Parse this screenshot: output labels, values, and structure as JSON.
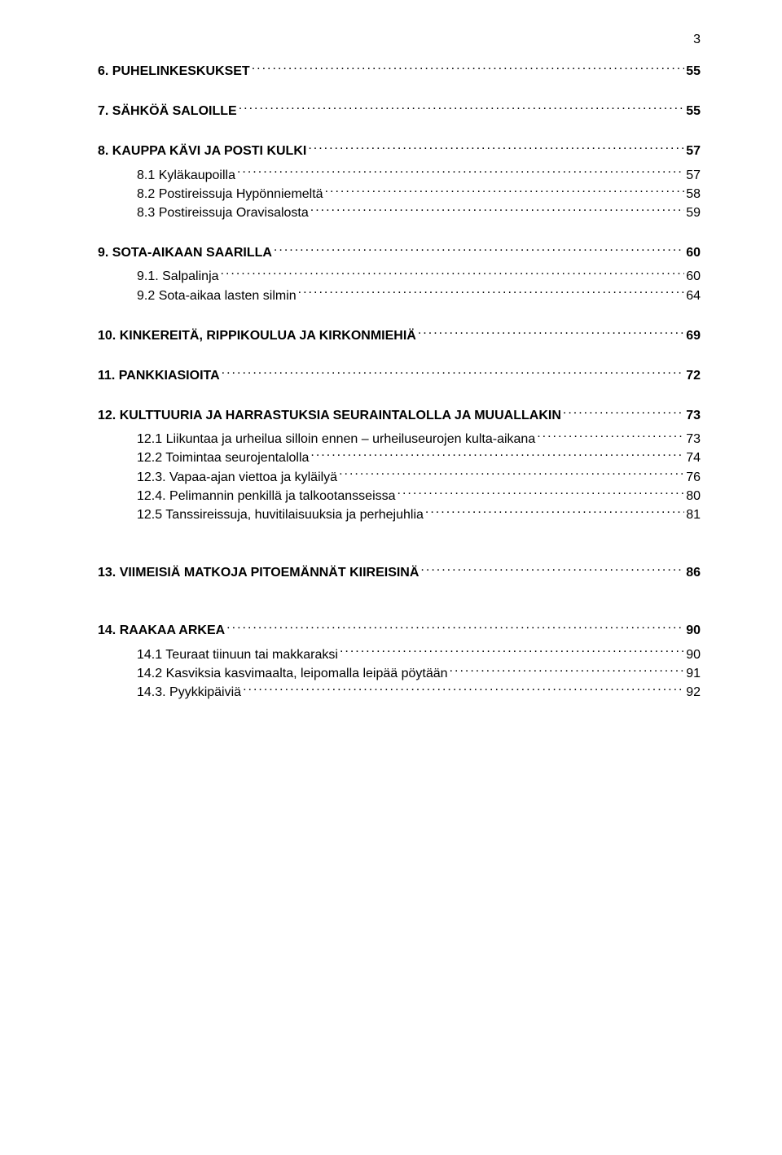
{
  "pageNumber": "3",
  "entries": [
    {
      "kind": "row",
      "label": "6. PUHELINKESKUKSET",
      "page": "55",
      "bold": true,
      "sub": false
    },
    {
      "kind": "gap",
      "size": "md"
    },
    {
      "kind": "row",
      "label": "7. SÄHKÖÄ SALOILLE",
      "page": "55",
      "bold": true,
      "sub": false
    },
    {
      "kind": "gap",
      "size": "md"
    },
    {
      "kind": "row",
      "label": "8. KAUPPA KÄVI JA POSTI KULKI",
      "page": "57",
      "bold": true,
      "sub": false
    },
    {
      "kind": "gap",
      "size": "sm"
    },
    {
      "kind": "row",
      "label": "8.1 Kyläkaupoilla",
      "page": "57",
      "bold": false,
      "sub": true
    },
    {
      "kind": "row",
      "label": "8.2 Postireissuja Hypönniemeltä",
      "page": "58",
      "bold": false,
      "sub": true
    },
    {
      "kind": "row",
      "label": "8.3 Postireissuja Oravisalosta",
      "page": "59",
      "bold": false,
      "sub": true
    },
    {
      "kind": "gap",
      "size": "md"
    },
    {
      "kind": "row",
      "label": "9. SOTA-AIKAAN SAARILLA",
      "page": "60",
      "bold": true,
      "sub": false
    },
    {
      "kind": "gap",
      "size": "sm"
    },
    {
      "kind": "row",
      "label": "9.1. Salpalinja",
      "page": "60",
      "bold": false,
      "sub": true
    },
    {
      "kind": "row",
      "label": "9.2 Sota-aikaa lasten silmin",
      "page": "64",
      "bold": false,
      "sub": true
    },
    {
      "kind": "gap",
      "size": "md"
    },
    {
      "kind": "row",
      "label": "10. KINKEREITÄ, RIPPIKOULUA JA KIRKONMIEHIÄ",
      "page": "69",
      "bold": true,
      "sub": false
    },
    {
      "kind": "gap",
      "size": "md"
    },
    {
      "kind": "row",
      "label": "11. PANKKIASIOITA",
      "page": "72",
      "bold": true,
      "sub": false
    },
    {
      "kind": "gap",
      "size": "md"
    },
    {
      "kind": "row",
      "label": "12. KULTTUURIA JA HARRASTUKSIA SEURAINTALOLLA JA MUUALLAKIN",
      "page": "73",
      "bold": true,
      "sub": false
    },
    {
      "kind": "gap",
      "size": "sm"
    },
    {
      "kind": "row",
      "label": "12.1 Liikuntaa ja urheilua silloin ennen – urheiluseurojen kulta-aikana",
      "page": "73",
      "bold": false,
      "sub": true
    },
    {
      "kind": "row",
      "label": "12.2 Toimintaa seurojentalolla",
      "page": "74",
      "bold": false,
      "sub": true
    },
    {
      "kind": "row",
      "label": "12.3. Vapaa-ajan viettoa ja kyläilyä",
      "page": "76",
      "bold": false,
      "sub": true
    },
    {
      "kind": "row",
      "label": "12.4. Pelimannin penkillä ja  talkootansseissa",
      "page": "80",
      "bold": false,
      "sub": true
    },
    {
      "kind": "row",
      "label": "12.5 Tanssireissuja, huvitilaisuuksia ja perhejuhlia",
      "page": "81",
      "bold": false,
      "sub": true
    },
    {
      "kind": "gap",
      "size": "lg"
    },
    {
      "kind": "row",
      "label": "13. VIIMEISIÄ MATKOJA PITOEMÄNNÄT KIIREISINÄ",
      "page": "86",
      "bold": true,
      "sub": false
    },
    {
      "kind": "gap",
      "size": "lg"
    },
    {
      "kind": "row",
      "label": "14. RAAKAA ARKEA",
      "page": "90",
      "bold": true,
      "sub": false
    },
    {
      "kind": "gap",
      "size": "sm"
    },
    {
      "kind": "row",
      "label": "14.1 Teuraat tiinuun tai makkaraksi",
      "page": "90",
      "bold": false,
      "sub": true
    },
    {
      "kind": "row",
      "label": "14.2 Kasviksia kasvimaalta, leipomalla leipää pöytään",
      "page": "91",
      "bold": false,
      "sub": true
    },
    {
      "kind": "row",
      "label": "14.3. Pyykkipäiviä",
      "page": "92",
      "bold": false,
      "sub": true
    }
  ]
}
